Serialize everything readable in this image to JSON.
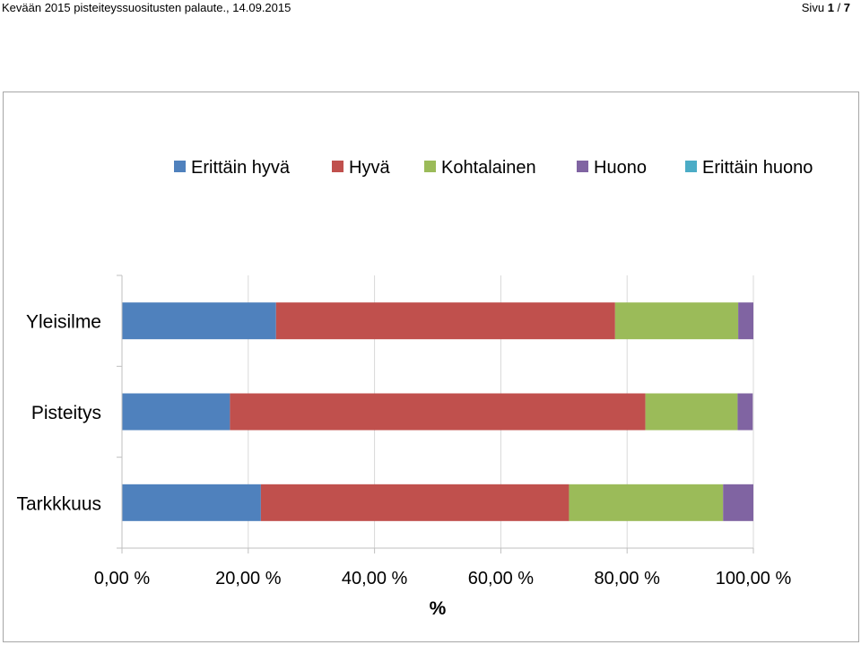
{
  "header": {
    "left_text": "Kevään 2015 pisteiteyssuositusten palaute., 14.09.2015",
    "page_label": "Sivu",
    "page_current": "1",
    "page_sep": " / ",
    "page_total": "7"
  },
  "chart_data": {
    "type": "bar",
    "orientation": "horizontal",
    "stacked": true,
    "categories": [
      "Yleisilme",
      "Pisteitys",
      "Tarkkkuus"
    ],
    "series": [
      {
        "name": "Erittäin hyvä",
        "color": "#4f81bd",
        "values": [
          24.4,
          17.1,
          22.0
        ]
      },
      {
        "name": "Hyvä",
        "color": "#c0504d",
        "values": [
          53.7,
          65.8,
          48.8
        ]
      },
      {
        "name": "Kohtalainen",
        "color": "#9bbb59",
        "values": [
          19.5,
          14.6,
          24.4
        ]
      },
      {
        "name": "Huono",
        "color": "#8064a2",
        "values": [
          2.4,
          2.4,
          4.8
        ]
      },
      {
        "name": "Erittäin huono",
        "color": "#4bacc6",
        "values": [
          0,
          0,
          0
        ]
      }
    ],
    "xticks": [
      "0,00 %",
      "20,00 %",
      "40,00 %",
      "60,00 %",
      "80,00 %",
      "100,00 %"
    ],
    "xlim": [
      0,
      100
    ],
    "xlabel": "%",
    "ylabel": "",
    "legend_position": "top",
    "grid": "vertical"
  }
}
